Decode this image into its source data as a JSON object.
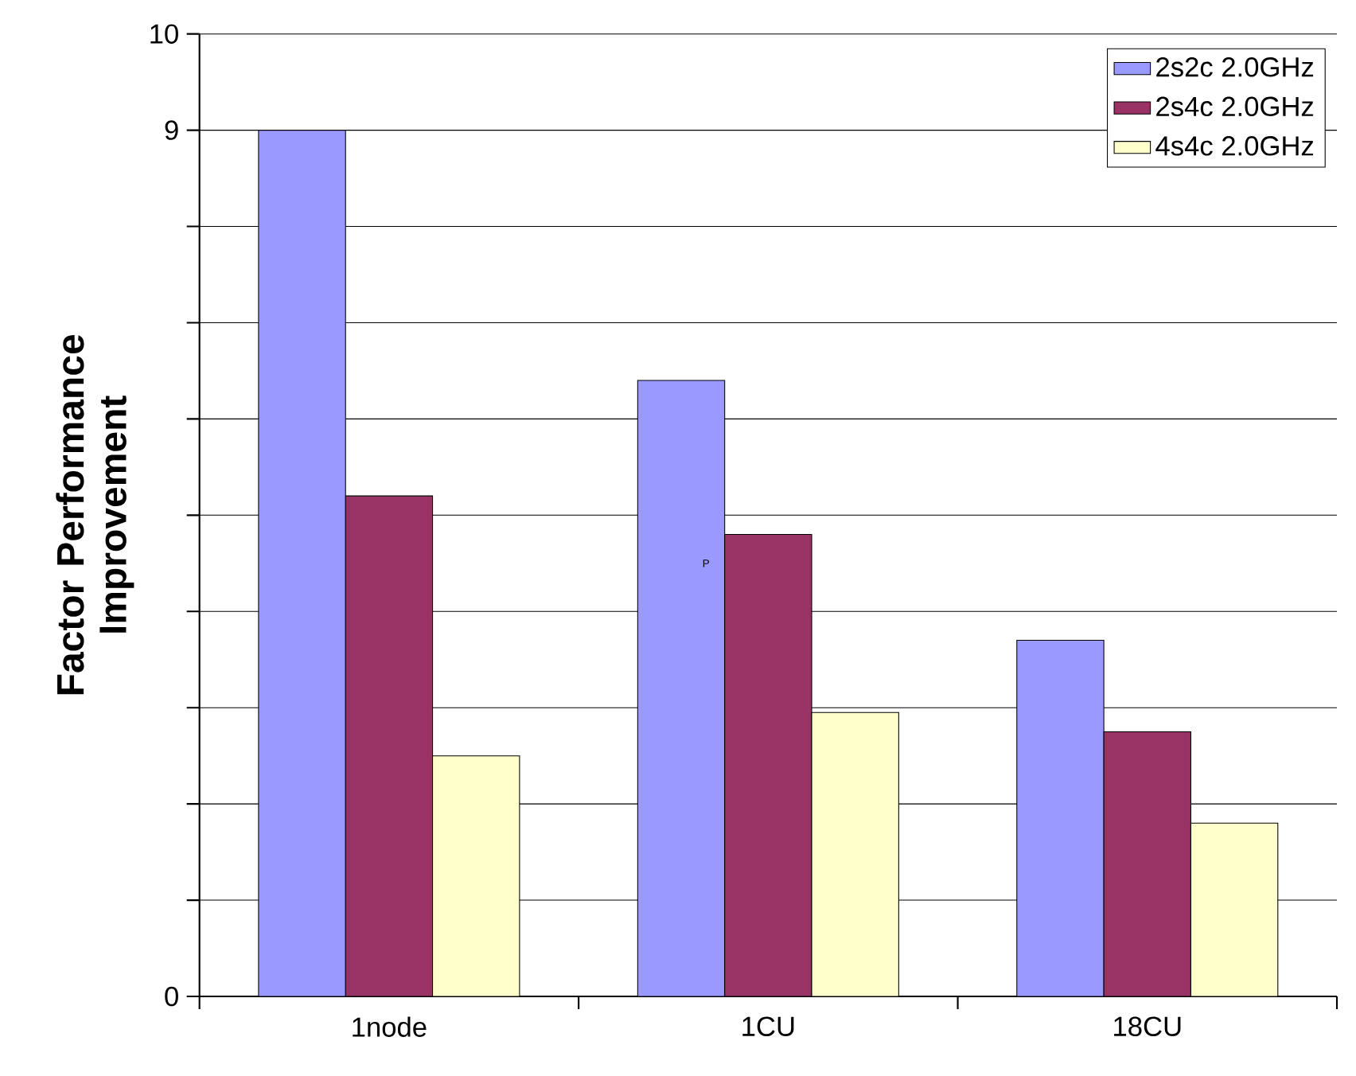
{
  "chart_data": {
    "type": "bar",
    "ylabel": "Factor Performance Improvement",
    "categories": [
      "1node",
      "1CU",
      "18CU"
    ],
    "series": [
      {
        "name": "2s2c 2.0GHz",
        "color": "#9999ff",
        "values": [
          9.0,
          6.4,
          3.7
        ]
      },
      {
        "name": "2s4c 2.0GHz",
        "color": "#993366",
        "values": [
          5.2,
          4.8,
          2.75
        ]
      },
      {
        "name": "4s4c 2.0GHz",
        "color": "#ffffcc",
        "values": [
          2.5,
          2.95,
          1.8
        ]
      }
    ],
    "ylim": [
      0,
      10
    ],
    "yticks": [
      0,
      {
        "value": 1,
        "label": null
      },
      {
        "value": 2,
        "label": null
      },
      {
        "value": 3,
        "label": null
      },
      {
        "value": 4,
        "label": null
      },
      {
        "value": 5,
        "label": null
      },
      {
        "value": 6,
        "label": null
      },
      {
        "value": 7,
        "label": null
      },
      {
        "value": 8,
        "label": null
      },
      9,
      10
    ],
    "grid": "y",
    "legend": "top right",
    "annotations": [
      "P"
    ]
  }
}
